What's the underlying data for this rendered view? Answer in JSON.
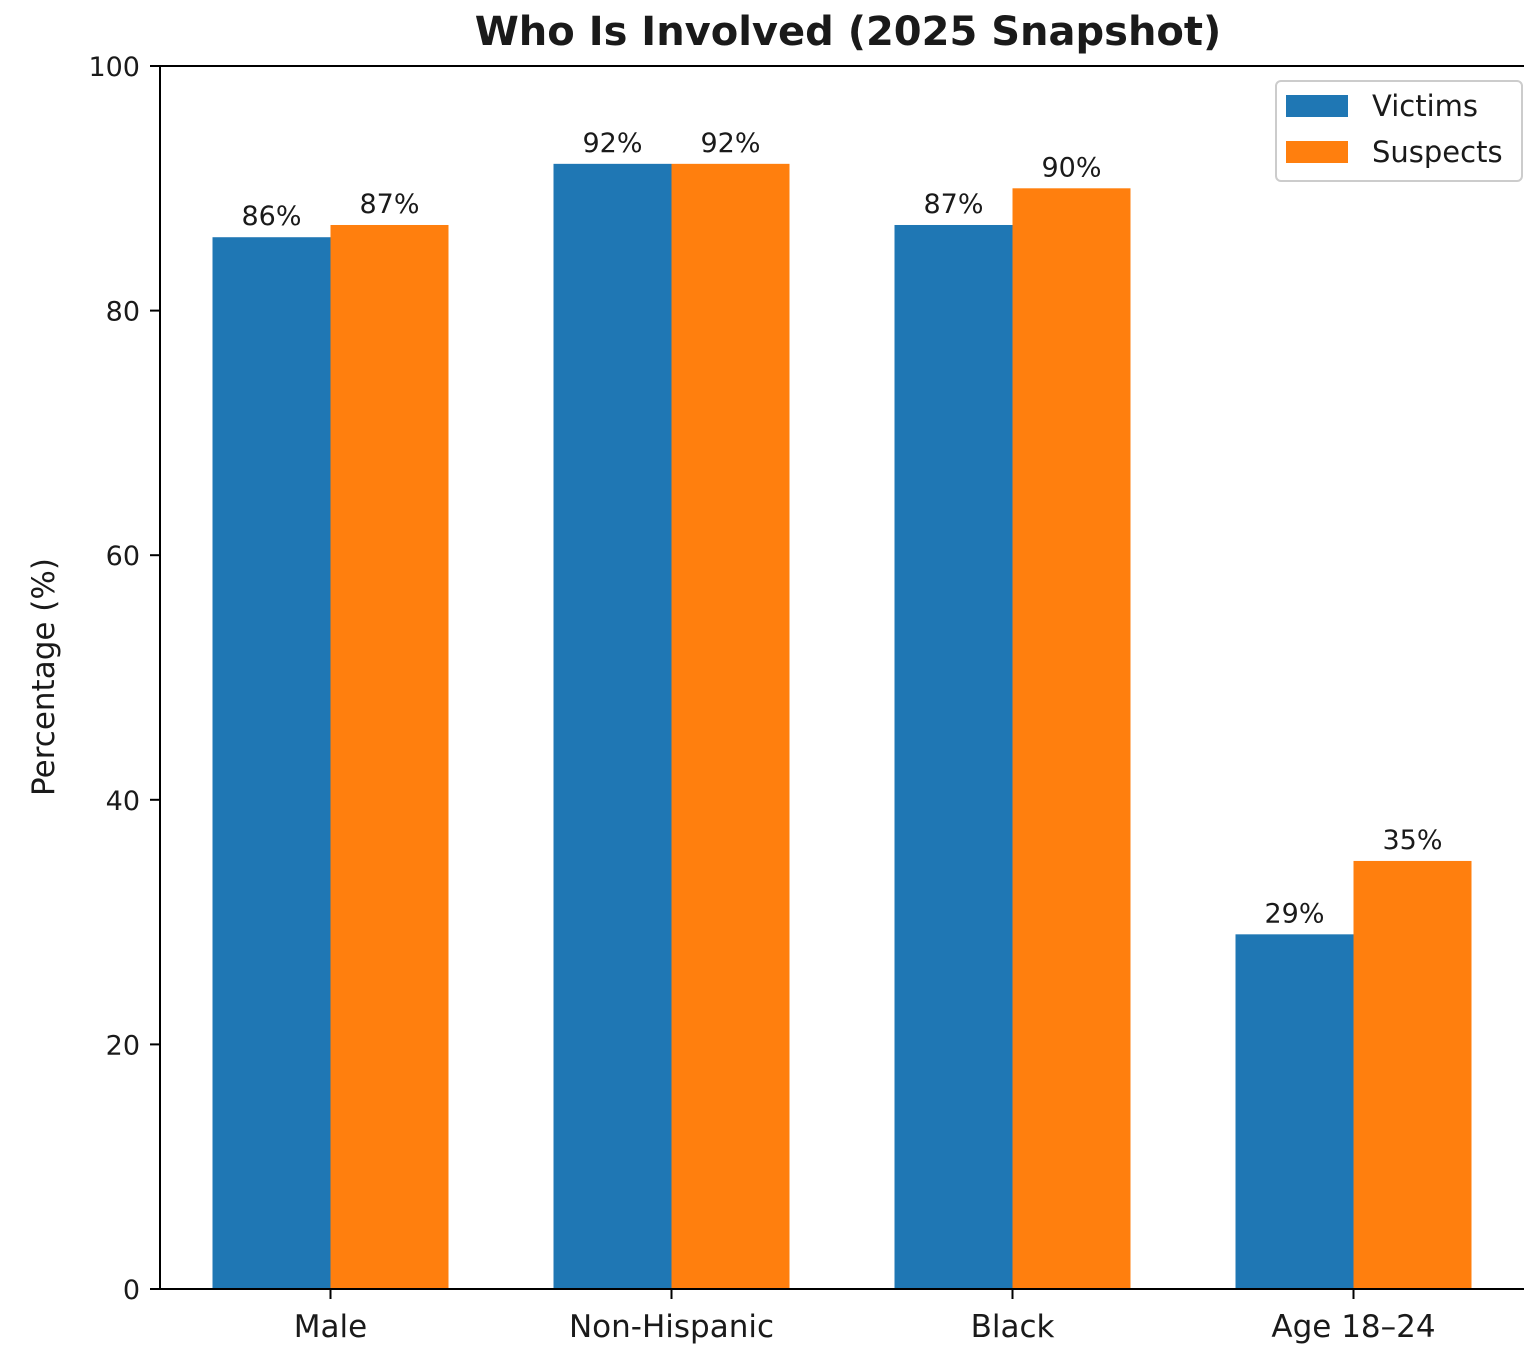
{
  "chart_data": {
    "type": "bar",
    "title": "Who Is Involved (2025 Snapshot)",
    "xlabel": "",
    "ylabel": "Percentage (%)",
    "ylim": [
      0,
      100
    ],
    "yticks": [
      0,
      20,
      40,
      60,
      80,
      100
    ],
    "categories": [
      "Male",
      "Non-Hispanic",
      "Black",
      "Age 18–24"
    ],
    "series": [
      {
        "name": "Victims",
        "values": [
          86,
          92,
          87,
          29
        ],
        "labels": [
          "86%",
          "92%",
          "87%",
          "29%"
        ],
        "color": "#1f77b4"
      },
      {
        "name": "Suspects",
        "values": [
          87,
          92,
          90,
          35
        ],
        "labels": [
          "87%",
          "92%",
          "90%",
          "35%"
        ],
        "color": "#ff7f0e"
      }
    ],
    "grid": false,
    "legend_position": "top-right"
  }
}
